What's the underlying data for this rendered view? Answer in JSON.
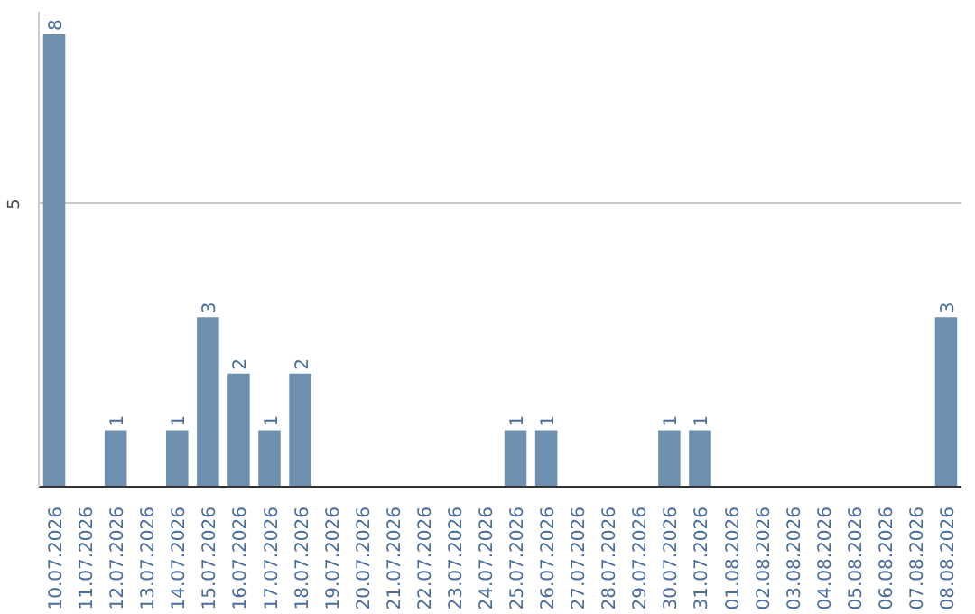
{
  "chart_data": {
    "type": "bar",
    "categories": [
      "10.07.2026",
      "11.07.2026",
      "12.07.2026",
      "13.07.2026",
      "14.07.2026",
      "15.07.2026",
      "16.07.2026",
      "17.07.2026",
      "18.07.2026",
      "19.07.2026",
      "20.07.2026",
      "21.07.2026",
      "22.07.2026",
      "23.07.2026",
      "24.07.2026",
      "25.07.2026",
      "26.07.2026",
      "27.07.2026",
      "28.07.2026",
      "29.07.2026",
      "30.07.2026",
      "31.07.2026",
      "01.08.2026",
      "02.08.2026",
      "03.08.2026",
      "04.08.2026",
      "05.08.2026",
      "06.08.2026",
      "07.08.2026",
      "08.08.2026"
    ],
    "values": [
      8,
      0,
      1,
      0,
      1,
      3,
      2,
      1,
      2,
      0,
      0,
      0,
      0,
      0,
      0,
      1,
      1,
      0,
      0,
      0,
      1,
      1,
      0,
      0,
      0,
      0,
      0,
      0,
      0,
      3
    ],
    "value_labels": [
      "8",
      null,
      "1",
      null,
      "1",
      "3",
      "2",
      "1",
      "2",
      null,
      null,
      null,
      null,
      null,
      null,
      "1",
      "1",
      null,
      null,
      null,
      "1",
      "1",
      null,
      null,
      null,
      null,
      null,
      null,
      null,
      "3"
    ],
    "color": "#6d8fb0",
    "ylim": [
      0,
      8.4
    ],
    "yticks": [
      5
    ],
    "grid": "y"
  }
}
